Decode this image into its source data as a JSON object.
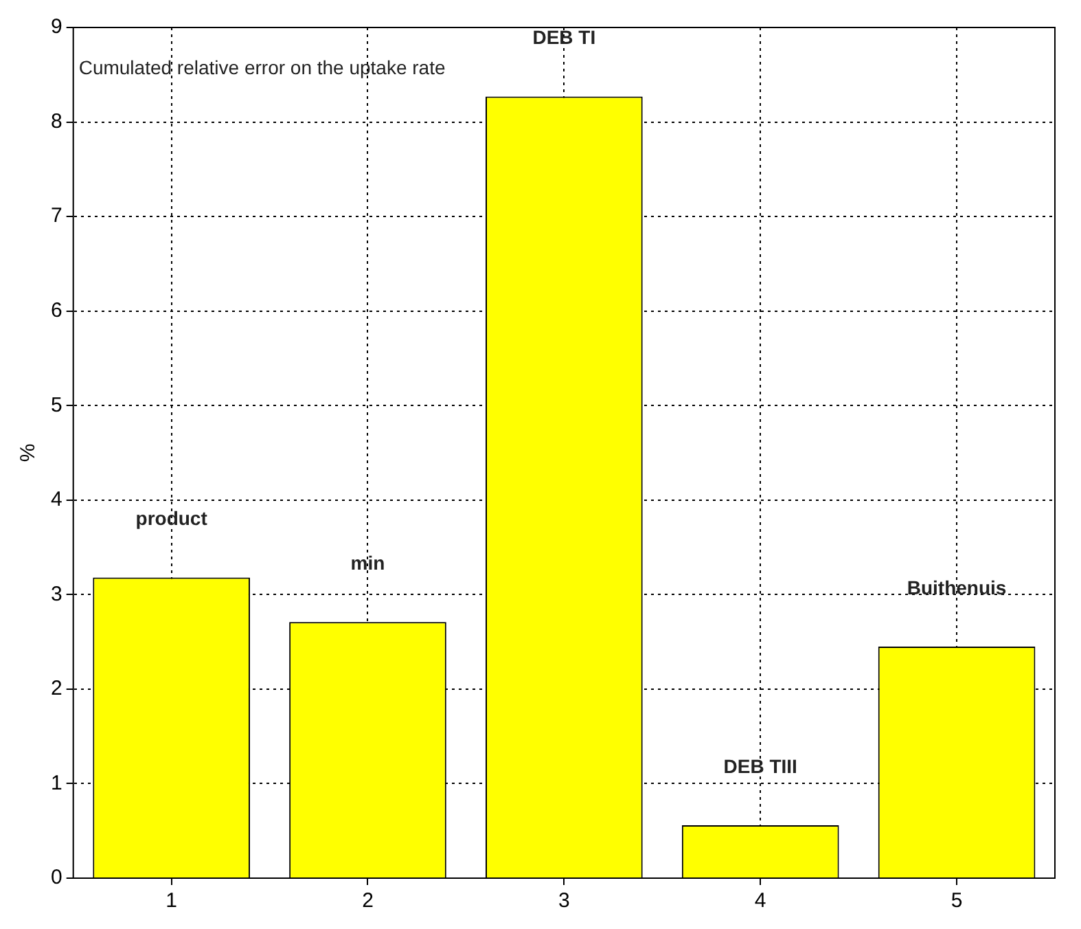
{
  "chart_data": {
    "type": "bar",
    "ylabel": "%",
    "categories": [
      "1",
      "2",
      "3",
      "4",
      "5"
    ],
    "values": [
      3.18,
      2.71,
      8.27,
      0.56,
      2.45
    ],
    "color": "#ffff00",
    "ylim": [
      0,
      9
    ],
    "yticks": [
      0,
      1,
      2,
      3,
      4,
      5,
      6,
      7,
      8,
      9
    ],
    "grid": true,
    "annotations": [
      "Cumulated relative error on the uptake rate",
      {
        "text": "product",
        "x": "1",
        "y": 3.18
      },
      {
        "text": "min",
        "x": "2",
        "y": 2.71
      },
      {
        "text": "DEB TI",
        "x": "3",
        "y": 8.27
      },
      {
        "text": "DEB TIII",
        "x": "4",
        "y": 0.56
      },
      {
        "text": "Buithenuis",
        "x": "5",
        "y": 2.45
      }
    ]
  }
}
